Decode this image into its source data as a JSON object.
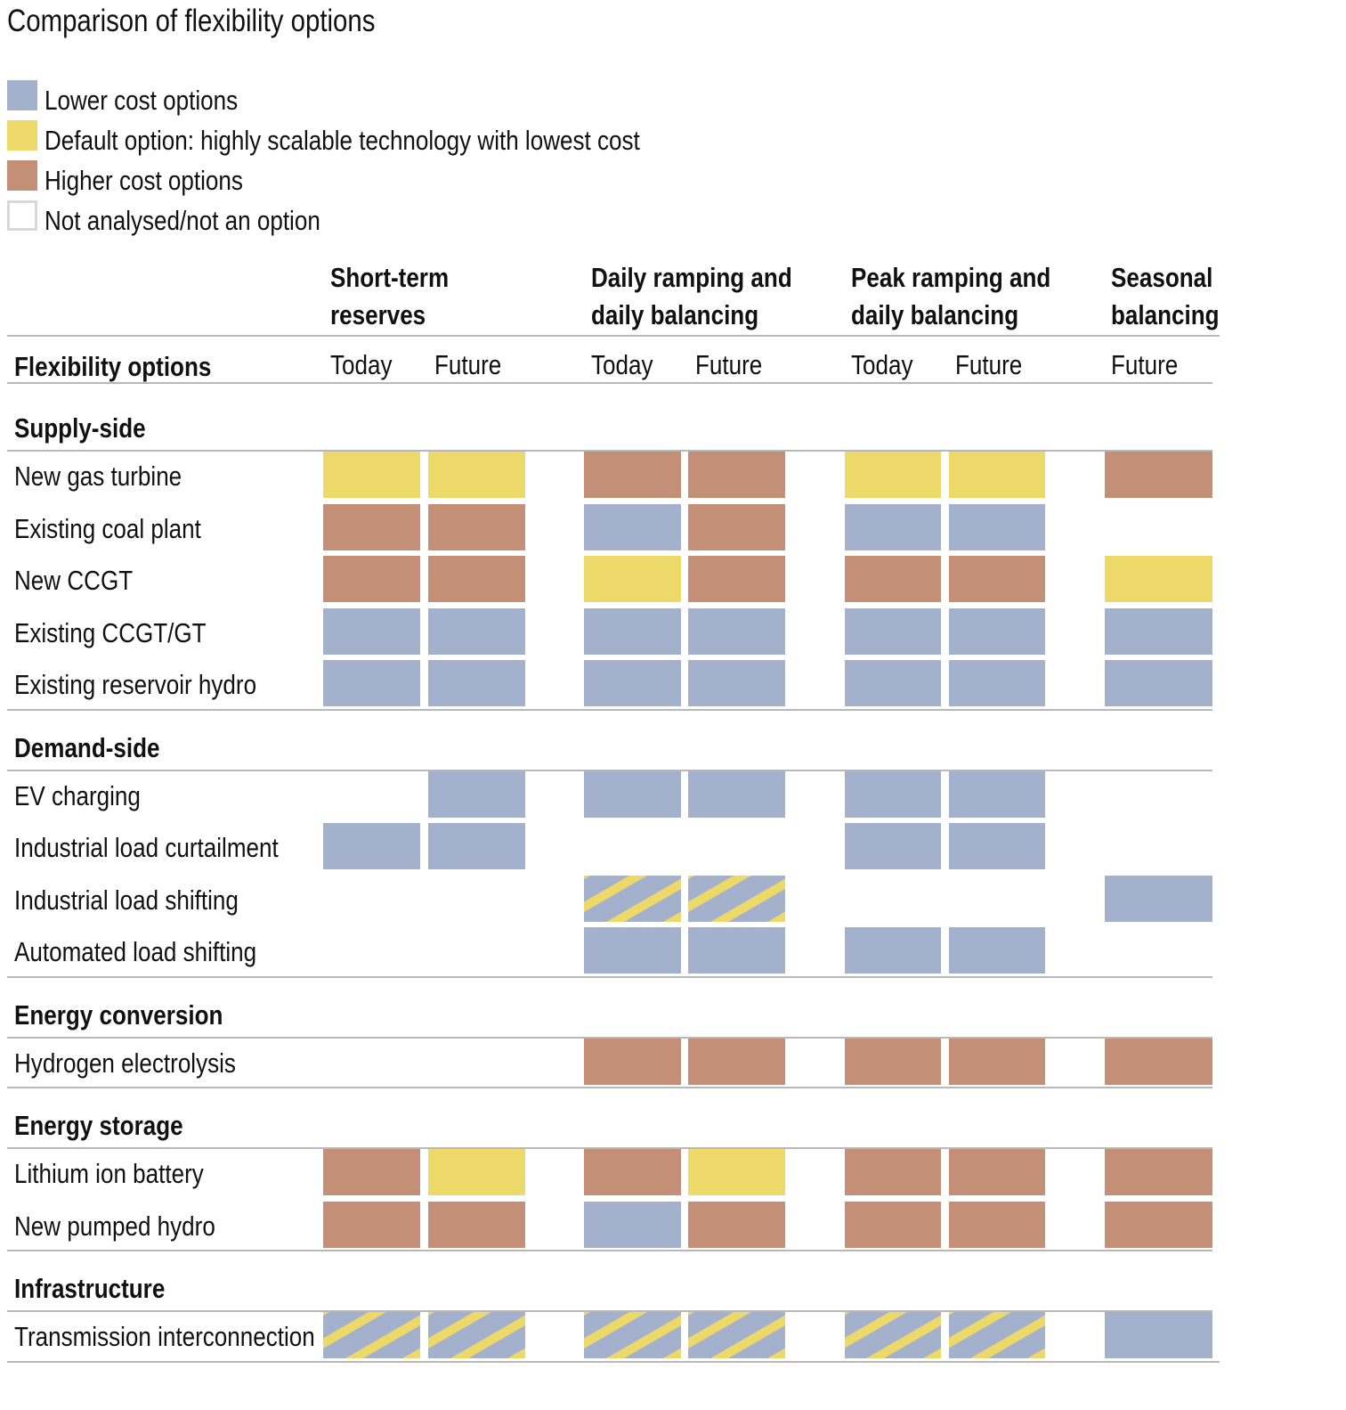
{
  "title": "Comparison of flexibility options",
  "colors": {
    "lower": "#a3b1cc",
    "default": "#ecd96a",
    "higher": "#c38f77",
    "none_border": "#d8d8d8"
  },
  "legend": [
    {
      "key": "lower",
      "label": "Lower cost options"
    },
    {
      "key": "default",
      "label": "Default option: highly scalable technology with lowest cost"
    },
    {
      "key": "higher",
      "label": "Higher cost options"
    },
    {
      "key": "none",
      "label": "Not analysed/not an option"
    }
  ],
  "header": {
    "row_header": "Flexibility options",
    "groups": [
      {
        "line1": "Short-term",
        "line2": "reserves",
        "cols": [
          "Today",
          "Future"
        ]
      },
      {
        "line1": "Daily ramping and",
        "line2": "daily balancing",
        "cols": [
          "Today",
          "Future"
        ]
      },
      {
        "line1": "Peak ramping and",
        "line2": "daily balancing",
        "cols": [
          "Today",
          "Future"
        ]
      },
      {
        "line1": "Seasonal",
        "line2": "balancing",
        "cols": [
          "Future"
        ]
      }
    ]
  },
  "chart_data": {
    "type": "table",
    "title": "Comparison of flexibility options",
    "columns": [
      "Short-term reserves Today",
      "Short-term reserves Future",
      "Daily ramping and daily balancing Today",
      "Daily ramping and daily balancing Future",
      "Peak ramping and daily balancing Today",
      "Peak ramping and daily balancing Future",
      "Seasonal balancing Future"
    ],
    "sections": [
      {
        "name": "Supply-side",
        "rows": [
          {
            "label": "New gas turbine",
            "cells": [
              "default",
              "default",
              "higher",
              "higher",
              "default",
              "default",
              "higher"
            ]
          },
          {
            "label": "Existing coal plant",
            "cells": [
              "higher",
              "higher",
              "lower",
              "higher",
              "lower",
              "lower",
              "none"
            ]
          },
          {
            "label": "New CCGT",
            "cells": [
              "higher",
              "higher",
              "default",
              "higher",
              "higher",
              "higher",
              "default"
            ]
          },
          {
            "label": "Existing CCGT/GT",
            "cells": [
              "lower",
              "lower",
              "lower",
              "lower",
              "lower",
              "lower",
              "lower"
            ]
          },
          {
            "label": "Existing reservoir hydro",
            "cells": [
              "lower",
              "lower",
              "lower",
              "lower",
              "lower",
              "lower",
              "lower"
            ]
          }
        ]
      },
      {
        "name": "Demand-side",
        "rows": [
          {
            "label": "EV charging",
            "cells": [
              "none",
              "lower",
              "lower",
              "lower",
              "lower",
              "lower",
              "none"
            ]
          },
          {
            "label": "Industrial load curtailment",
            "cells": [
              "lower",
              "lower",
              "none",
              "none",
              "lower",
              "lower",
              "none"
            ]
          },
          {
            "label": "Industrial load shifting",
            "cells": [
              "none",
              "none",
              "striped",
              "striped",
              "none",
              "none",
              "lower"
            ]
          },
          {
            "label": "Automated load shifting",
            "cells": [
              "none",
              "none",
              "lower",
              "lower",
              "lower",
              "lower",
              "none"
            ]
          }
        ]
      },
      {
        "name": "Energy conversion",
        "rows": [
          {
            "label": "Hydrogen electrolysis",
            "cells": [
              "none",
              "none",
              "higher",
              "higher",
              "higher",
              "higher",
              "higher"
            ]
          }
        ]
      },
      {
        "name": "Energy storage",
        "rows": [
          {
            "label": "Lithium ion battery",
            "cells": [
              "higher",
              "default",
              "higher",
              "default",
              "higher",
              "higher",
              "higher"
            ]
          },
          {
            "label": "New pumped hydro",
            "cells": [
              "higher",
              "higher",
              "lower",
              "higher",
              "higher",
              "higher",
              "higher"
            ]
          }
        ]
      },
      {
        "name": "Infrastructure",
        "rows": [
          {
            "label": "Transmission interconnection",
            "cells": [
              "striped",
              "striped",
              "striped",
              "striped",
              "striped",
              "striped",
              "lower"
            ]
          }
        ]
      }
    ]
  }
}
